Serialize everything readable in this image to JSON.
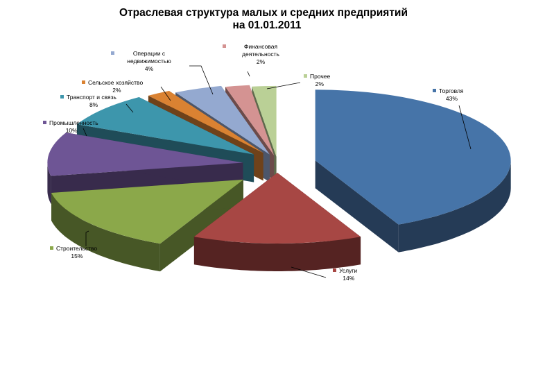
{
  "chart_data": {
    "type": "pie",
    "title_lines": [
      "Отраслевая структура малых и средних предприятий",
      "на 01.01.2011"
    ],
    "slices": [
      {
        "label": "Торговля",
        "percent_label": "43%",
        "value": 43,
        "color": "#4674A8",
        "side_color": "#253B56"
      },
      {
        "label": "Услуги",
        "percent_label": "14%",
        "value": 14,
        "color": "#A74744",
        "side_color": "#552322"
      },
      {
        "label": "Строительство",
        "percent_label": "15%",
        "value": 15,
        "color": "#8BA84A",
        "side_color": "#475726"
      },
      {
        "label": "Промышленность",
        "percent_label": "10%",
        "value": 10,
        "color": "#6E5595",
        "side_color": "#382B4C"
      },
      {
        "label": "Транспорт и связь",
        "percent_label": "8%",
        "value": 8,
        "color": "#3D96AC",
        "side_color": "#1F4C58"
      },
      {
        "label": "Сельское хозяйство",
        "percent_label": "2%",
        "value": 2,
        "color": "#DA8232",
        "side_color": "#6F421A"
      },
      {
        "label_lines": [
          "Операции с",
          "недвижимостью"
        ],
        "label": "Операции с недвижимостью",
        "percent_label": "4%",
        "value": 4,
        "color": "#94A9D0",
        "side_color": "#4C566A"
      },
      {
        "label_lines": [
          "Финансовая",
          "деятельность"
        ],
        "label": "Финансовая деятельность",
        "percent_label": "2%",
        "value": 2,
        "color": "#D49392",
        "side_color": "#6C4B4A"
      },
      {
        "label": "Прочее",
        "percent_label": "2%",
        "value": 2,
        "color": "#BAD096",
        "side_color": "#5F6A4C"
      }
    ],
    "legend": "none",
    "labels_placement": "outside with leader lines"
  }
}
